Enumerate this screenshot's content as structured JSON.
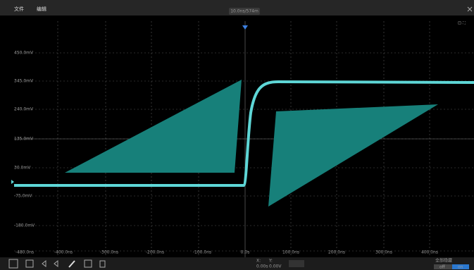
{
  "menu": [
    "文件",
    "编辑"
  ],
  "timebase_label": "10.0ns/574m",
  "y_labels": [
    "450.0mV",
    "345.0mV",
    "240.0mV",
    "135.0mV",
    "30.0mV",
    "-75.0mV",
    "-180.0mV"
  ],
  "x_labels": [
    "-480.0ns",
    "-400.0ns",
    "-300.0ns",
    "-200.0ns",
    "-100.0ns",
    "0.0s",
    "100.0ns",
    "200.0ns",
    "300.0ns",
    "400.0ns"
  ],
  "cursor": {
    "x_title": "X:",
    "x_value": "0.00s",
    "y_title": "Y:",
    "y_value": "0.00V"
  },
  "hide_all": {
    "label": "全部隐藏",
    "off": "off",
    "on": "on"
  }
}
